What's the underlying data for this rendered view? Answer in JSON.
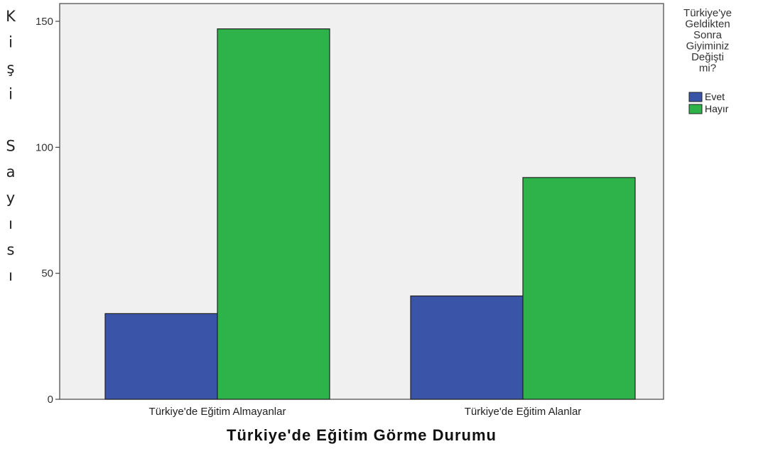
{
  "chart_data": {
    "type": "bar",
    "title": "",
    "xlabel": "Türkiye'de Eğitim Görme Durumu",
    "ylabel": "Kişi Sayısı",
    "categories": [
      "Türkiye'de Eğitim Almayanlar",
      "Türkiye'de Eğitim Alanlar"
    ],
    "series": [
      {
        "name": "Evet",
        "values": [
          34,
          41
        ],
        "color": "#3a55a8"
      },
      {
        "name": "Hayır",
        "values": [
          147,
          88
        ],
        "color": "#2db34a"
      }
    ],
    "ylim": [
      0,
      150
    ],
    "yticks": [
      0,
      50,
      100,
      150
    ],
    "grid": false,
    "legend": {
      "title_lines": [
        "Türkiye'ye",
        "Geldikten",
        "Sonra",
        "Giyiminiz",
        "Değişti",
        "mi?"
      ],
      "placement": "right"
    },
    "plot_background": "#f0f0f0"
  }
}
